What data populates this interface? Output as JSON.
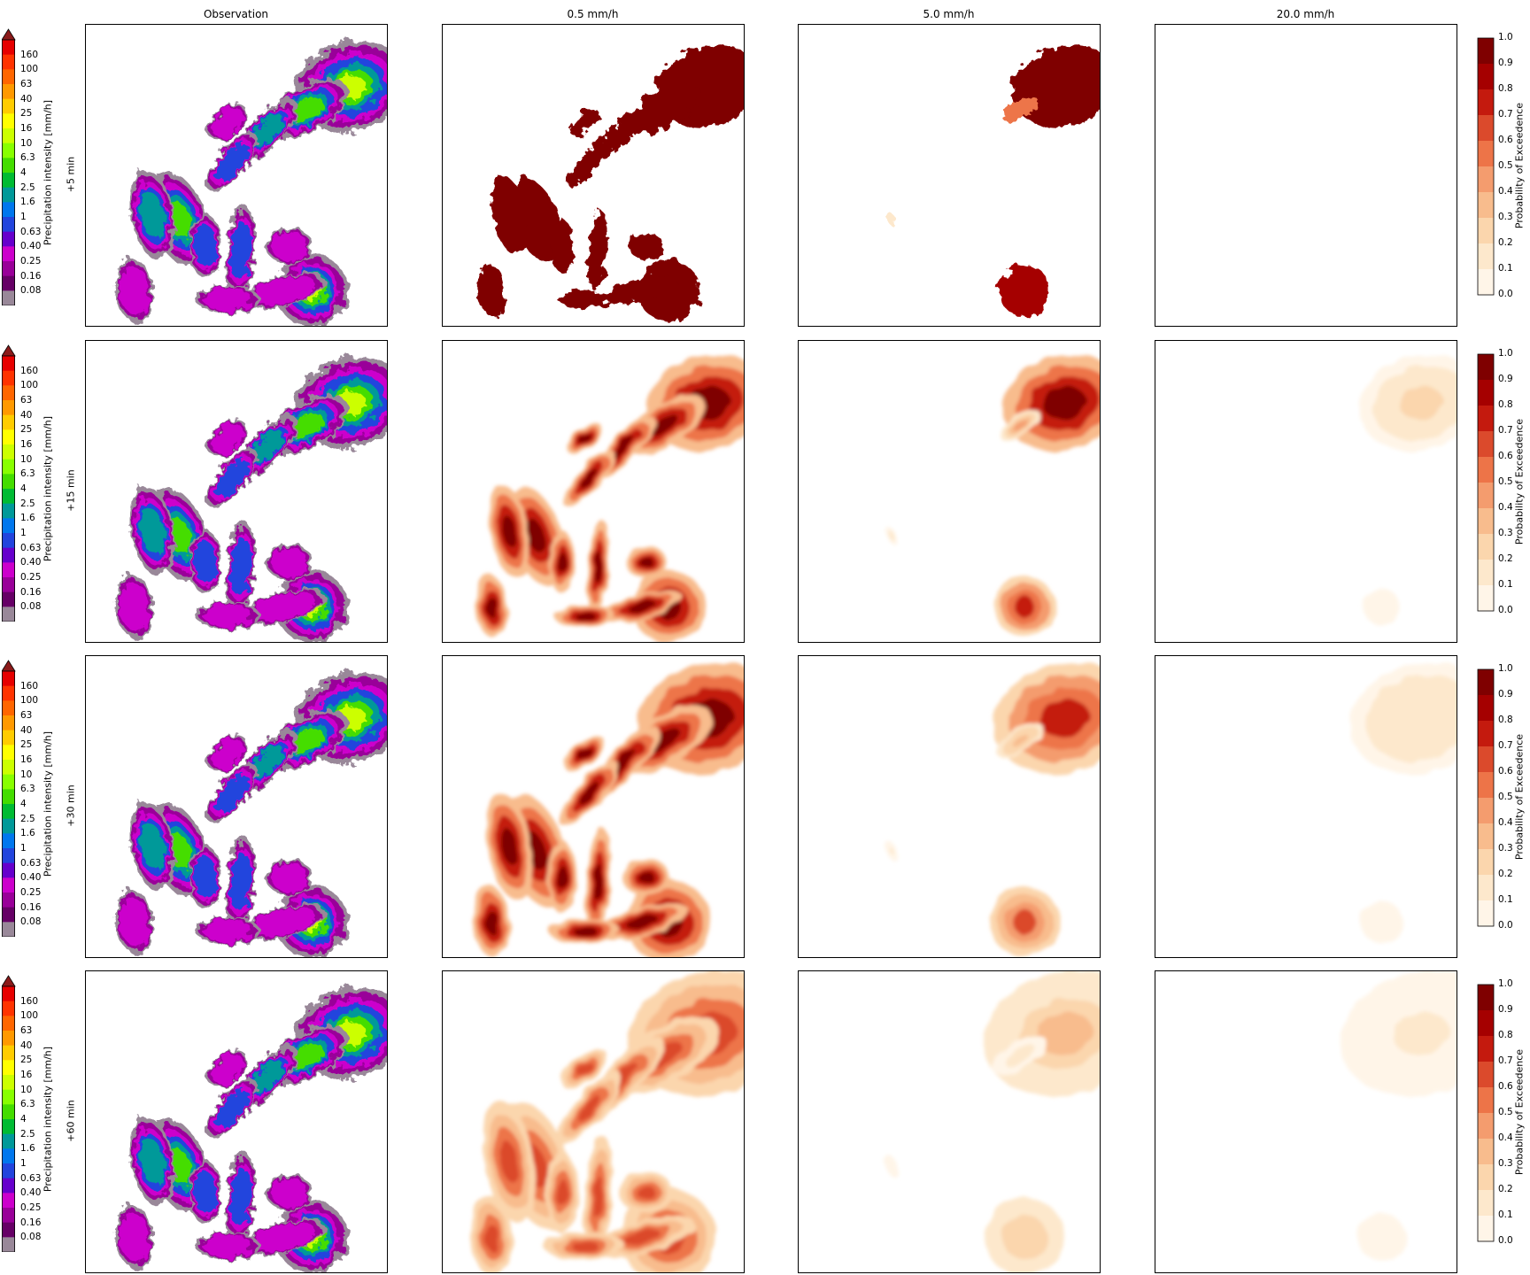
{
  "chart_data": {
    "type": "heatmap",
    "column_titles": [
      "Observation",
      "0.5 mm/h",
      "5.0 mm/h",
      "20.0 mm/h"
    ],
    "row_labels": [
      "+5 min",
      "+15 min",
      "+30 min",
      "+60 min"
    ],
    "intensity_colorbar": {
      "label": "Precipitation intensity [mm/h]",
      "ticks": [
        "160",
        "100",
        "63",
        "40",
        "25",
        "16",
        "10",
        "6.3",
        "4",
        "2.5",
        "1.6",
        "1",
        "0.63",
        "0.40",
        "0.25",
        "0.16",
        "0.08"
      ],
      "colors": [
        "#e60000",
        "#ff3300",
        "#ff6600",
        "#ff9900",
        "#ffcc00",
        "#ffff00",
        "#ccff00",
        "#88ff00",
        "#44dd00",
        "#00bb33",
        "#009999",
        "#0077ee",
        "#2244dd",
        "#6600cc",
        "#cc00cc",
        "#990099",
        "#660066",
        "#998899"
      ],
      "extend_color": "#8b1a1a"
    },
    "probability_colorbar": {
      "label": "Probability of Exceedence",
      "ticks": [
        "1.0",
        "0.9",
        "0.8",
        "0.7",
        "0.6",
        "0.5",
        "0.4",
        "0.3",
        "0.2",
        "0.1",
        "0.0"
      ],
      "colors": [
        "#7f0000",
        "#a50000",
        "#c41a0e",
        "#db4a2c",
        "#ed7448",
        "#f49c6e",
        "#f8bc8d",
        "#fbd6ad",
        "#fde8cc",
        "#fff5e8"
      ]
    },
    "probability_peaks": [
      [
        1.0,
        1.0,
        0.02
      ],
      [
        1.0,
        0.9,
        0.2
      ],
      [
        1.0,
        0.75,
        0.18
      ],
      [
        0.65,
        0.35,
        0.12
      ]
    ]
  }
}
